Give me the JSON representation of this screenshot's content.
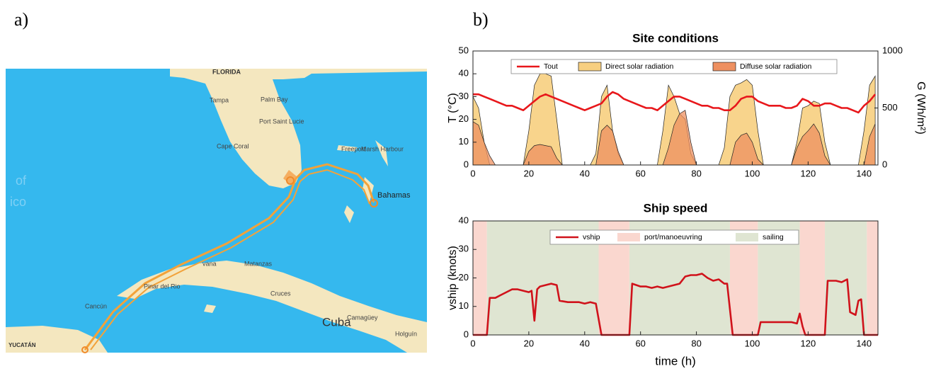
{
  "panel_labels": [
    "a)",
    "b)"
  ],
  "map": {
    "labels": [
      "FLORIDA",
      "Tampa",
      "Palm Bay",
      "Port Saint Lucie",
      "Cape Coral",
      "Freeport",
      "Marsh Harbour",
      "Bahamas",
      "of",
      "ico",
      "vana",
      "Matanzas",
      "Pinar del Rio",
      "Cruces",
      "Cuba",
      "Camagüey",
      "Holguín",
      "Cancún",
      "YUCATÁN"
    ]
  },
  "chart_data": [
    {
      "type": "line",
      "title": "Site conditions",
      "ylabel": "T (°C)",
      "y2label": "G (Wh/m²)",
      "xlim": [
        0,
        145
      ],
      "xticks": [
        0,
        20,
        40,
        60,
        80,
        100,
        120,
        140
      ],
      "ylim": [
        0,
        50
      ],
      "yticks": [
        0,
        10,
        20,
        30,
        40,
        50
      ],
      "y2lim": [
        0,
        1000
      ],
      "y2ticks": [
        0,
        500,
        1000
      ],
      "x": [
        0,
        2,
        4,
        6,
        8,
        10,
        12,
        14,
        16,
        18,
        20,
        22,
        24,
        26,
        28,
        30,
        32,
        34,
        36,
        38,
        40,
        42,
        44,
        46,
        48,
        50,
        52,
        54,
        56,
        58,
        60,
        62,
        64,
        66,
        68,
        70,
        72,
        74,
        76,
        78,
        80,
        82,
        84,
        86,
        88,
        90,
        92,
        94,
        96,
        98,
        100,
        102,
        104,
        106,
        108,
        110,
        112,
        114,
        116,
        118,
        120,
        122,
        124,
        126,
        128,
        130,
        132,
        134,
        136,
        138,
        140,
        142,
        144
      ],
      "series": [
        {
          "name": "Tout",
          "color": "#e8171b",
          "fill": false,
          "values": [
            31,
            31,
            30,
            29,
            28,
            27,
            26,
            26,
            25,
            24,
            26,
            28,
            30,
            31,
            30,
            29,
            28,
            27,
            26,
            25,
            24,
            25,
            26,
            27,
            30,
            32,
            31,
            29,
            28,
            27,
            26,
            25,
            25,
            24,
            26,
            28,
            30,
            30,
            29,
            28,
            27,
            26,
            26,
            25,
            25,
            24,
            24,
            26,
            29,
            30,
            30,
            28,
            27,
            26,
            26,
            26,
            25,
            25,
            26,
            29,
            28,
            26,
            26,
            27,
            27,
            26,
            25,
            25,
            24,
            23,
            26,
            28,
            31
          ]
        },
        {
          "name": "Direct solar radiation",
          "color": "#f7cf80",
          "fill": true,
          "axis": "y2",
          "values": [
            600,
            500,
            200,
            0,
            0,
            0,
            0,
            0,
            0,
            0,
            300,
            700,
            800,
            800,
            780,
            400,
            0,
            0,
            0,
            0,
            0,
            0,
            100,
            600,
            700,
            300,
            100,
            0,
            0,
            0,
            0,
            0,
            0,
            0,
            300,
            700,
            600,
            450,
            400,
            100,
            0,
            0,
            0,
            0,
            0,
            150,
            600,
            700,
            720,
            750,
            700,
            300,
            0,
            0,
            0,
            0,
            0,
            0,
            200,
            500,
            520,
            560,
            540,
            200,
            0,
            0,
            0,
            0,
            0,
            0,
            300,
            700,
            780
          ]
        },
        {
          "name": "Diffuse solar radiation",
          "color": "#ee9060",
          "fill": true,
          "axis": "y2",
          "values": [
            380,
            350,
            200,
            80,
            0,
            0,
            0,
            0,
            0,
            0,
            120,
            170,
            180,
            170,
            160,
            60,
            0,
            0,
            0,
            0,
            0,
            0,
            0,
            300,
            350,
            300,
            120,
            0,
            0,
            0,
            0,
            0,
            0,
            0,
            0,
            150,
            350,
            450,
            480,
            200,
            0,
            0,
            0,
            0,
            0,
            0,
            0,
            200,
            260,
            280,
            200,
            50,
            0,
            0,
            0,
            0,
            0,
            0,
            150,
            250,
            300,
            360,
            280,
            80,
            0,
            0,
            0,
            0,
            0,
            0,
            0,
            250,
            360
          ]
        }
      ]
    },
    {
      "type": "line",
      "title": "Ship speed",
      "ylabel": "vship (knots)",
      "xlabel": "time (h)",
      "xlim": [
        0,
        145
      ],
      "xticks": [
        0,
        20,
        40,
        60,
        80,
        100,
        120,
        140
      ],
      "ylim": [
        0,
        40
      ],
      "yticks": [
        0,
        10,
        20,
        30,
        40
      ],
      "x": [
        0,
        5,
        6,
        8,
        10,
        12,
        14,
        16,
        18,
        20,
        21,
        22,
        23,
        24,
        26,
        28,
        30,
        31,
        34,
        38,
        40,
        42,
        44,
        46,
        56,
        57,
        60,
        62,
        64,
        66,
        68,
        70,
        72,
        74,
        76,
        78,
        80,
        82,
        84,
        86,
        88,
        90,
        91,
        93,
        102,
        103,
        106,
        110,
        114,
        116,
        117,
        118,
        119,
        126,
        127,
        130,
        132,
        134,
        135,
        137,
        138,
        139,
        140,
        145
      ],
      "series": [
        {
          "name": "vship",
          "color": "#d0121b",
          "fill": false,
          "values": [
            0,
            0,
            13,
            13,
            14,
            15,
            16,
            16,
            15.5,
            15,
            15.5,
            5,
            16,
            17,
            17.5,
            18,
            17.5,
            12,
            11.5,
            11.5,
            11,
            11.5,
            11,
            0,
            0,
            18,
            17,
            17,
            16.5,
            17,
            16.5,
            17,
            17.5,
            18,
            20.5,
            21,
            21,
            21.5,
            20,
            19,
            19.5,
            18,
            18,
            0,
            0,
            4.5,
            4.5,
            4.5,
            4.5,
            4,
            7.5,
            3,
            0,
            0,
            19,
            19,
            18.5,
            19.5,
            8,
            7,
            12,
            12.5,
            0,
            0
          ]
        }
      ],
      "spans": [
        {
          "name": "port/manoeuvring",
          "color": "#fad7cf",
          "intervals": [
            [
              0,
              5
            ],
            [
              45,
              56
            ],
            [
              92,
              102
            ],
            [
              117,
              126
            ],
            [
              141,
              145
            ]
          ]
        },
        {
          "name": "sailing",
          "color": "#dfe5d2",
          "intervals": [
            [
              5,
              45
            ],
            [
              56,
              92
            ],
            [
              102,
              117
            ],
            [
              126,
              141
            ]
          ]
        }
      ]
    }
  ]
}
